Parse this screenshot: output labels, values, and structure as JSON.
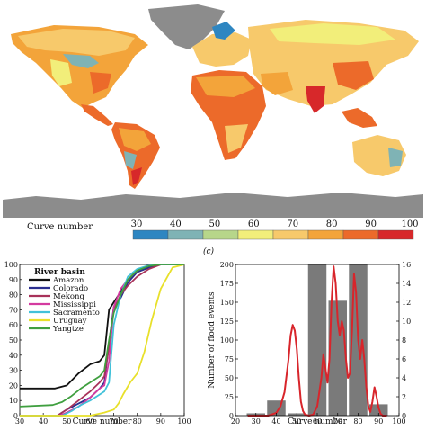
{
  "colorbar": {
    "label": "Curve number",
    "tick_labels": [
      "30",
      "40",
      "50",
      "60",
      "70",
      "80",
      "90",
      "100"
    ],
    "colors": [
      "#2e86c1",
      "#7fb3b5",
      "#b7d68a",
      "#f2ee7a",
      "#f7c96b",
      "#f3a43a",
      "#ec6a2a",
      "#d7282a"
    ]
  },
  "map": {
    "land_color": "#8c8c8c",
    "ocean_color": "#ffffff"
  },
  "panel_label": "(c)",
  "chart_data": [
    {
      "type": "line",
      "panel": "left",
      "xlabel": "Curve number",
      "ylabel": "",
      "xlim": [
        30,
        100
      ],
      "ylim": [
        0,
        100
      ],
      "x_ticks": [
        "30",
        "40",
        "50",
        "60",
        "70",
        "80",
        "90",
        "100"
      ],
      "y_ticks": [
        "0",
        "10",
        "20",
        "30",
        "40",
        "50",
        "60",
        "70",
        "80",
        "90",
        "100"
      ],
      "legend_title": "River basin",
      "legend_position": "top-left",
      "series": [
        {
          "name": "Amazon",
          "color": "#111111",
          "x": [
            30,
            45,
            50,
            55,
            60,
            64,
            66,
            68,
            70,
            73,
            76,
            80,
            85,
            90,
            100
          ],
          "y": [
            18,
            18,
            20,
            28,
            34,
            36,
            40,
            70,
            75,
            82,
            90,
            95,
            98,
            100,
            100
          ]
        },
        {
          "name": "Colorado",
          "color": "#2b2f8f",
          "x": [
            30,
            46,
            50,
            55,
            60,
            64,
            66,
            68,
            70,
            73,
            76,
            80,
            85,
            88,
            100
          ],
          "y": [
            0,
            0,
            4,
            8,
            12,
            18,
            22,
            48,
            72,
            78,
            88,
            95,
            98,
            100,
            100
          ]
        },
        {
          "name": "Mekong",
          "color": "#a8325a",
          "x": [
            30,
            46,
            50,
            55,
            60,
            64,
            66,
            68,
            70,
            73,
            76,
            80,
            85,
            90,
            100
          ],
          "y": [
            0,
            0,
            4,
            10,
            16,
            22,
            26,
            45,
            70,
            80,
            86,
            92,
            97,
            100,
            100
          ]
        },
        {
          "name": "Mississippi",
          "color": "#d43aa0",
          "x": [
            30,
            47,
            50,
            55,
            60,
            64,
            66,
            68,
            70,
            73,
            76,
            80,
            84,
            88,
            100
          ],
          "y": [
            0,
            0,
            2,
            6,
            12,
            18,
            20,
            36,
            72,
            84,
            90,
            96,
            99,
            100,
            100
          ]
        },
        {
          "name": "Sacramento",
          "color": "#41c1d9",
          "x": [
            30,
            48,
            52,
            56,
            60,
            64,
            66,
            68,
            70,
            73,
            76,
            80,
            84,
            88,
            100
          ],
          "y": [
            0,
            0,
            3,
            7,
            10,
            14,
            16,
            22,
            60,
            80,
            92,
            97,
            99,
            100,
            100
          ]
        },
        {
          "name": "Uruguay",
          "color": "#e8e02a",
          "x": [
            30,
            60,
            66,
            70,
            72,
            74,
            77,
            80,
            83,
            86,
            90,
            95,
            100
          ],
          "y": [
            0,
            0,
            2,
            4,
            8,
            14,
            22,
            28,
            42,
            62,
            84,
            98,
            100
          ]
        },
        {
          "name": "Yangtze",
          "color": "#3f9f3f",
          "x": [
            30,
            44,
            48,
            52,
            56,
            60,
            64,
            66,
            68,
            70,
            73,
            76,
            80,
            85,
            90,
            100
          ],
          "y": [
            6,
            7,
            9,
            13,
            18,
            22,
            26,
            30,
            50,
            68,
            80,
            90,
            96,
            99,
            100,
            100
          ]
        }
      ]
    },
    {
      "type": "bar",
      "panel": "right",
      "xlabel": "Curve number",
      "ylabel": "Number of flood events",
      "xlim": [
        20,
        100
      ],
      "ylim": [
        0,
        200
      ],
      "x_ticks": [
        "20",
        "30",
        "40",
        "50",
        "60",
        "70",
        "80",
        "90",
        "100"
      ],
      "y_ticks": [
        "0",
        "25",
        "50",
        "75",
        "100",
        "125",
        "150",
        "175",
        "200"
      ],
      "y2lim": [
        0,
        16
      ],
      "y2_ticks": [
        "0",
        "2",
        "4",
        "6",
        "8",
        "10",
        "12",
        "14",
        "16"
      ],
      "bar_color": "#7a7a7a",
      "bars": [
        {
          "center": 30,
          "value": 3
        },
        {
          "center": 40,
          "value": 20
        },
        {
          "center": 50,
          "value": 3
        },
        {
          "center": 60,
          "value": 200
        },
        {
          "center": 70,
          "value": 152
        },
        {
          "center": 80,
          "value": 200
        },
        {
          "center": 90,
          "value": 15
        }
      ],
      "line": {
        "color": "#d8252b",
        "x": [
          26,
          36,
          40,
          42,
          44,
          46,
          47,
          48,
          49,
          50,
          51,
          52,
          53,
          54,
          56,
          58,
          60,
          62,
          63,
          64,
          65,
          66,
          67,
          68,
          69,
          70,
          71,
          72,
          73,
          74,
          75,
          76,
          77,
          78,
          79,
          80,
          81,
          82,
          83,
          84,
          85,
          86,
          87,
          88,
          89,
          90,
          91,
          92,
          94
        ],
        "y": [
          0,
          0,
          0.3,
          1,
          2.5,
          6,
          8.5,
          9.6,
          9.0,
          7,
          4,
          1.5,
          0.5,
          0.1,
          0,
          0.1,
          1,
          4,
          6.5,
          5,
          3.5,
          6,
          12,
          15.8,
          14,
          10,
          8.5,
          10,
          9,
          6,
          4,
          4.5,
          9,
          15,
          13,
          8,
          6,
          8,
          6,
          3,
          1,
          0.4,
          1.5,
          3,
          2,
          0.8,
          0.2,
          0,
          0
        ]
      }
    }
  ]
}
